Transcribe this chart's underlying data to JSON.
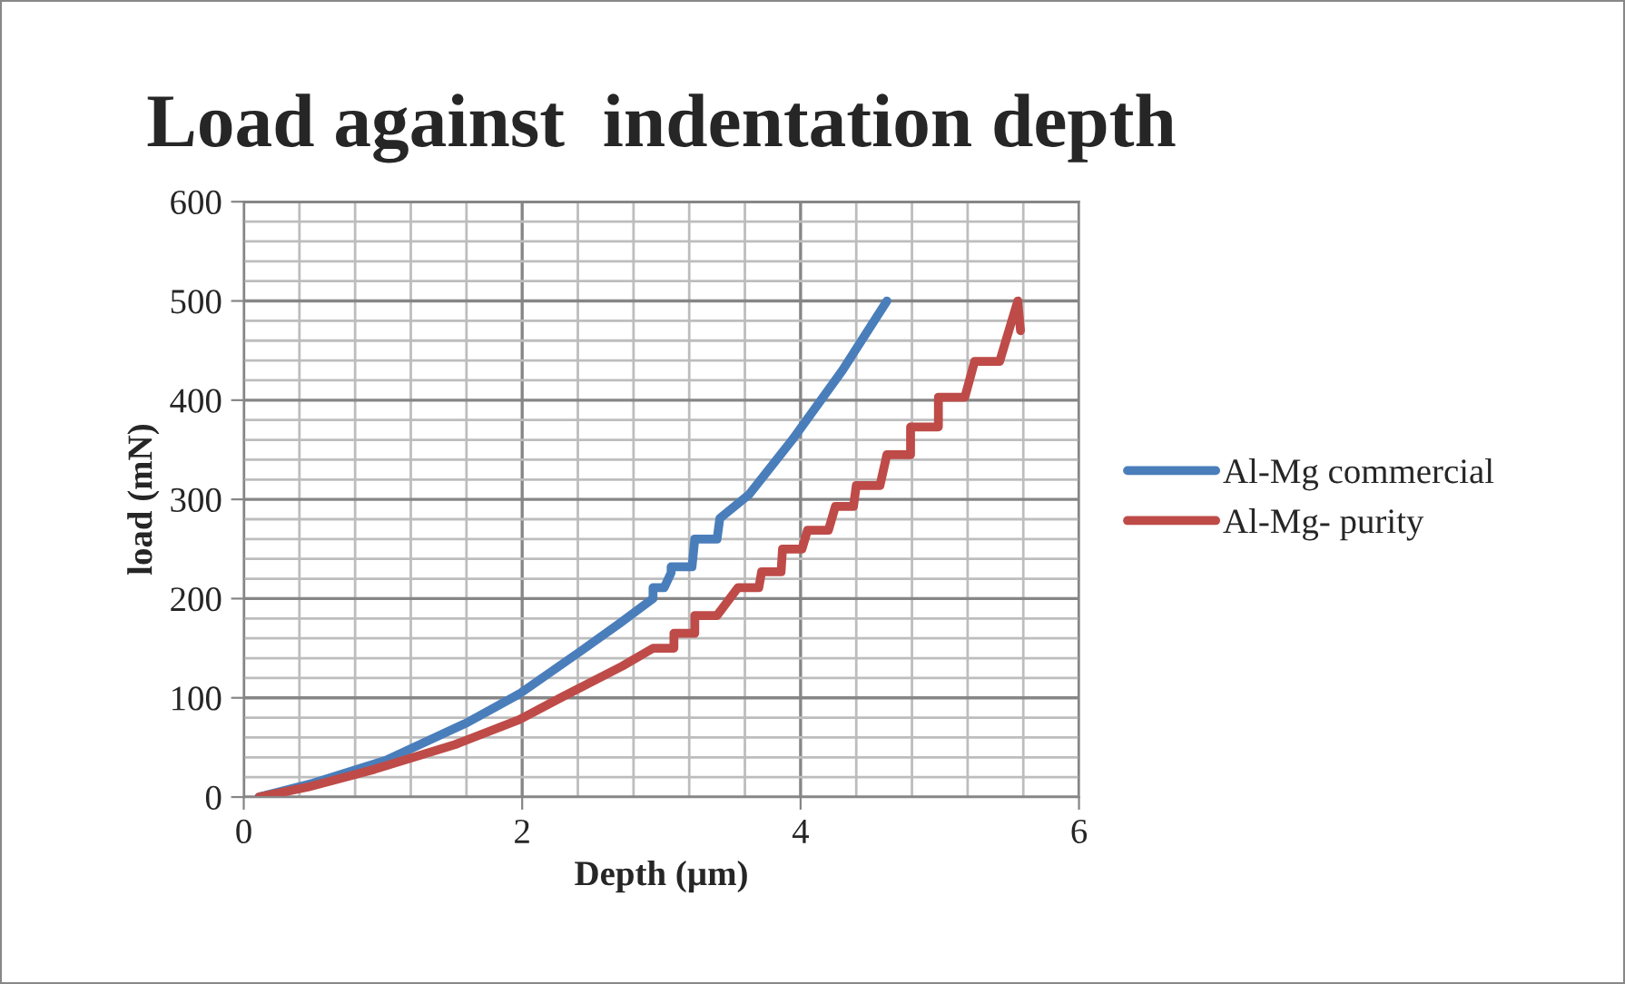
{
  "chart_data": {
    "type": "line",
    "title": "Load against  indentation depth",
    "xlabel": "Depth (µm)",
    "ylabel": "load (mN)",
    "xlim": [
      0,
      6
    ],
    "xticks": [
      0,
      2,
      4,
      6
    ],
    "ylim": [
      0,
      600
    ],
    "yticks": [
      0,
      100,
      200,
      300,
      400,
      500,
      600
    ],
    "grid": true,
    "legend": "right",
    "marker": "none",
    "line_style": "solid",
    "series": [
      {
        "name": "Al-Mg commercial",
        "color": "#4a7ebb",
        "x": [
          0.11,
          0.5,
          1.02,
          1.59,
          1.98,
          2.42,
          2.7,
          2.94,
          2.94,
          3.02,
          3.07,
          3.07,
          3.22,
          3.24,
          3.4,
          3.42,
          3.63,
          3.94,
          4.3,
          4.62
        ],
        "values": [
          0,
          14,
          37,
          74,
          104,
          147,
          175,
          200,
          211,
          211,
          226,
          232,
          232,
          260,
          260,
          281,
          305,
          360,
          430,
          500
        ]
      },
      {
        "name": "Al-Mg- purity",
        "color": "#be4b48",
        "x": [
          0.11,
          0.46,
          0.94,
          1.52,
          1.98,
          2.29,
          2.72,
          2.94,
          3.09,
          3.09,
          3.24,
          3.24,
          3.4,
          3.55,
          3.7,
          3.72,
          3.86,
          3.87,
          4.01,
          4.05,
          4.2,
          4.25,
          4.38,
          4.4,
          4.57,
          4.62,
          4.79,
          4.79,
          4.99,
          4.99,
          5.18,
          5.25,
          5.43,
          5.56,
          5.58
        ],
        "values": [
          0,
          10,
          28,
          53,
          78,
          101,
          132,
          150,
          150,
          165,
          165,
          183,
          183,
          211,
          211,
          227,
          227,
          250,
          250,
          269,
          269,
          293,
          293,
          314,
          314,
          345,
          345,
          373,
          373,
          403,
          403,
          439,
          439,
          500,
          470
        ]
      }
    ]
  }
}
